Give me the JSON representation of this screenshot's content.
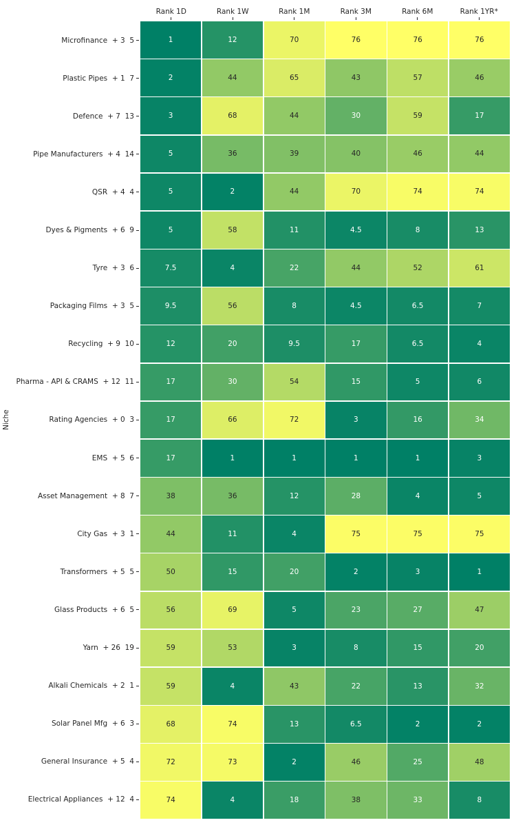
{
  "chart_data": {
    "type": "heatmap",
    "title": "",
    "xlabel": "",
    "ylabel": "Niche",
    "legend": "none",
    "grid_line_color": "#ffffff",
    "columns": [
      "Rank 1D",
      "Rank 1W",
      "Rank 1M",
      "Rank 3M",
      "Rank 6M",
      "Rank 1YR*"
    ],
    "rows": [
      {
        "label": "Microfinance  + 3  5",
        "values": [
          1,
          12,
          70,
          76,
          76,
          76
        ]
      },
      {
        "label": "Plastic Pipes  + 1  7",
        "values": [
          2,
          44,
          65,
          43,
          57,
          46
        ]
      },
      {
        "label": "Defence  + 7  13",
        "values": [
          3,
          68,
          44,
          30,
          59,
          17
        ]
      },
      {
        "label": "Pipe Manufacturers  + 4  14",
        "values": [
          5,
          36,
          39,
          40,
          46,
          44
        ]
      },
      {
        "label": "QSR  + 4  4",
        "values": [
          5,
          2,
          44,
          70,
          74,
          74
        ]
      },
      {
        "label": "Dyes & Pigments  + 6  9",
        "values": [
          5,
          58,
          11,
          4.5,
          8,
          13
        ]
      },
      {
        "label": "Tyre  + 3  6",
        "values": [
          7.5,
          4,
          22,
          44,
          52,
          61
        ]
      },
      {
        "label": "Packaging Films  + 3  5",
        "values": [
          9.5,
          56,
          8,
          4.5,
          6.5,
          7
        ]
      },
      {
        "label": "Recycling  + 9  10",
        "values": [
          12,
          20,
          9.5,
          17,
          6.5,
          4
        ]
      },
      {
        "label": "Pharma - API & CRAMS  + 12  11",
        "values": [
          17,
          30,
          54,
          15,
          5,
          6
        ]
      },
      {
        "label": "Rating Agencies  + 0  3",
        "values": [
          17,
          66,
          72,
          3,
          16,
          34
        ]
      },
      {
        "label": "EMS  + 5  6",
        "values": [
          17,
          1,
          1,
          1,
          1,
          3
        ]
      },
      {
        "label": "Asset Management  + 8  7",
        "values": [
          38,
          36,
          12,
          28,
          4,
          5
        ]
      },
      {
        "label": "City Gas  + 3  1",
        "values": [
          44,
          11,
          4,
          75,
          75,
          75
        ]
      },
      {
        "label": "Transformers  + 5  5",
        "values": [
          50,
          15,
          20,
          2,
          3,
          1
        ]
      },
      {
        "label": "Glass Products  + 6  5",
        "values": [
          56,
          69,
          5,
          23,
          27,
          47
        ]
      },
      {
        "label": "Yarn  + 26  19",
        "values": [
          59,
          53,
          3,
          8,
          15,
          20
        ]
      },
      {
        "label": "Alkali Chemicals  + 2  1",
        "values": [
          59,
          4,
          43,
          22,
          13,
          32
        ]
      },
      {
        "label": "Solar Panel Mfg  + 6  3",
        "values": [
          68,
          74,
          13,
          6.5,
          2,
          2
        ]
      },
      {
        "label": "General Insurance  + 5  4",
        "values": [
          72,
          73,
          2,
          46,
          25,
          48
        ]
      },
      {
        "label": "Electrical Appliances  + 12  4",
        "values": [
          74,
          4,
          18,
          38,
          33,
          8
        ]
      }
    ],
    "colormap": {
      "name": "summer",
      "low_color": "#008066",
      "high_color": "#ffff66",
      "vmin": 1,
      "vmax": 76
    },
    "annotation": {
      "light_text_color": "#ffffff",
      "dark_text_color": "#262626",
      "dark_text_min_value": 35
    }
  }
}
